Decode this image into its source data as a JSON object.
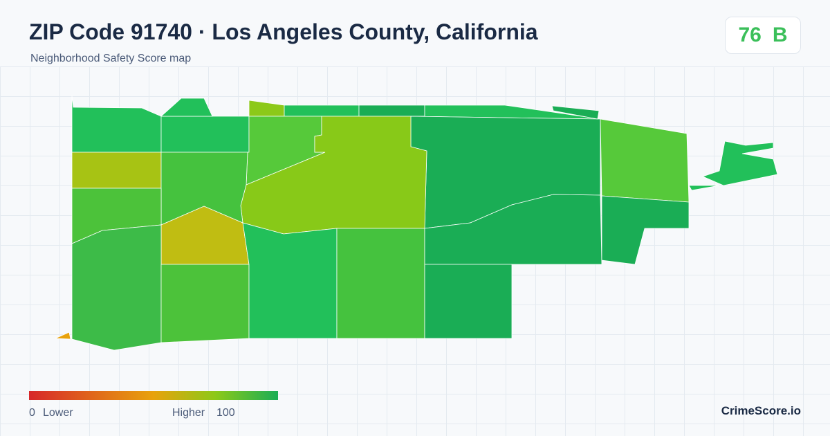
{
  "header": {
    "title": "ZIP Code 91740 · Los Angeles County, California",
    "subtitle": "Neighborhood Safety Score map"
  },
  "score": {
    "value": 76,
    "grade": "B"
  },
  "legend": {
    "min": 0,
    "min_label": "Lower",
    "max_label": "Higher",
    "max": 100
  },
  "brand": "CrimeScore.io"
}
